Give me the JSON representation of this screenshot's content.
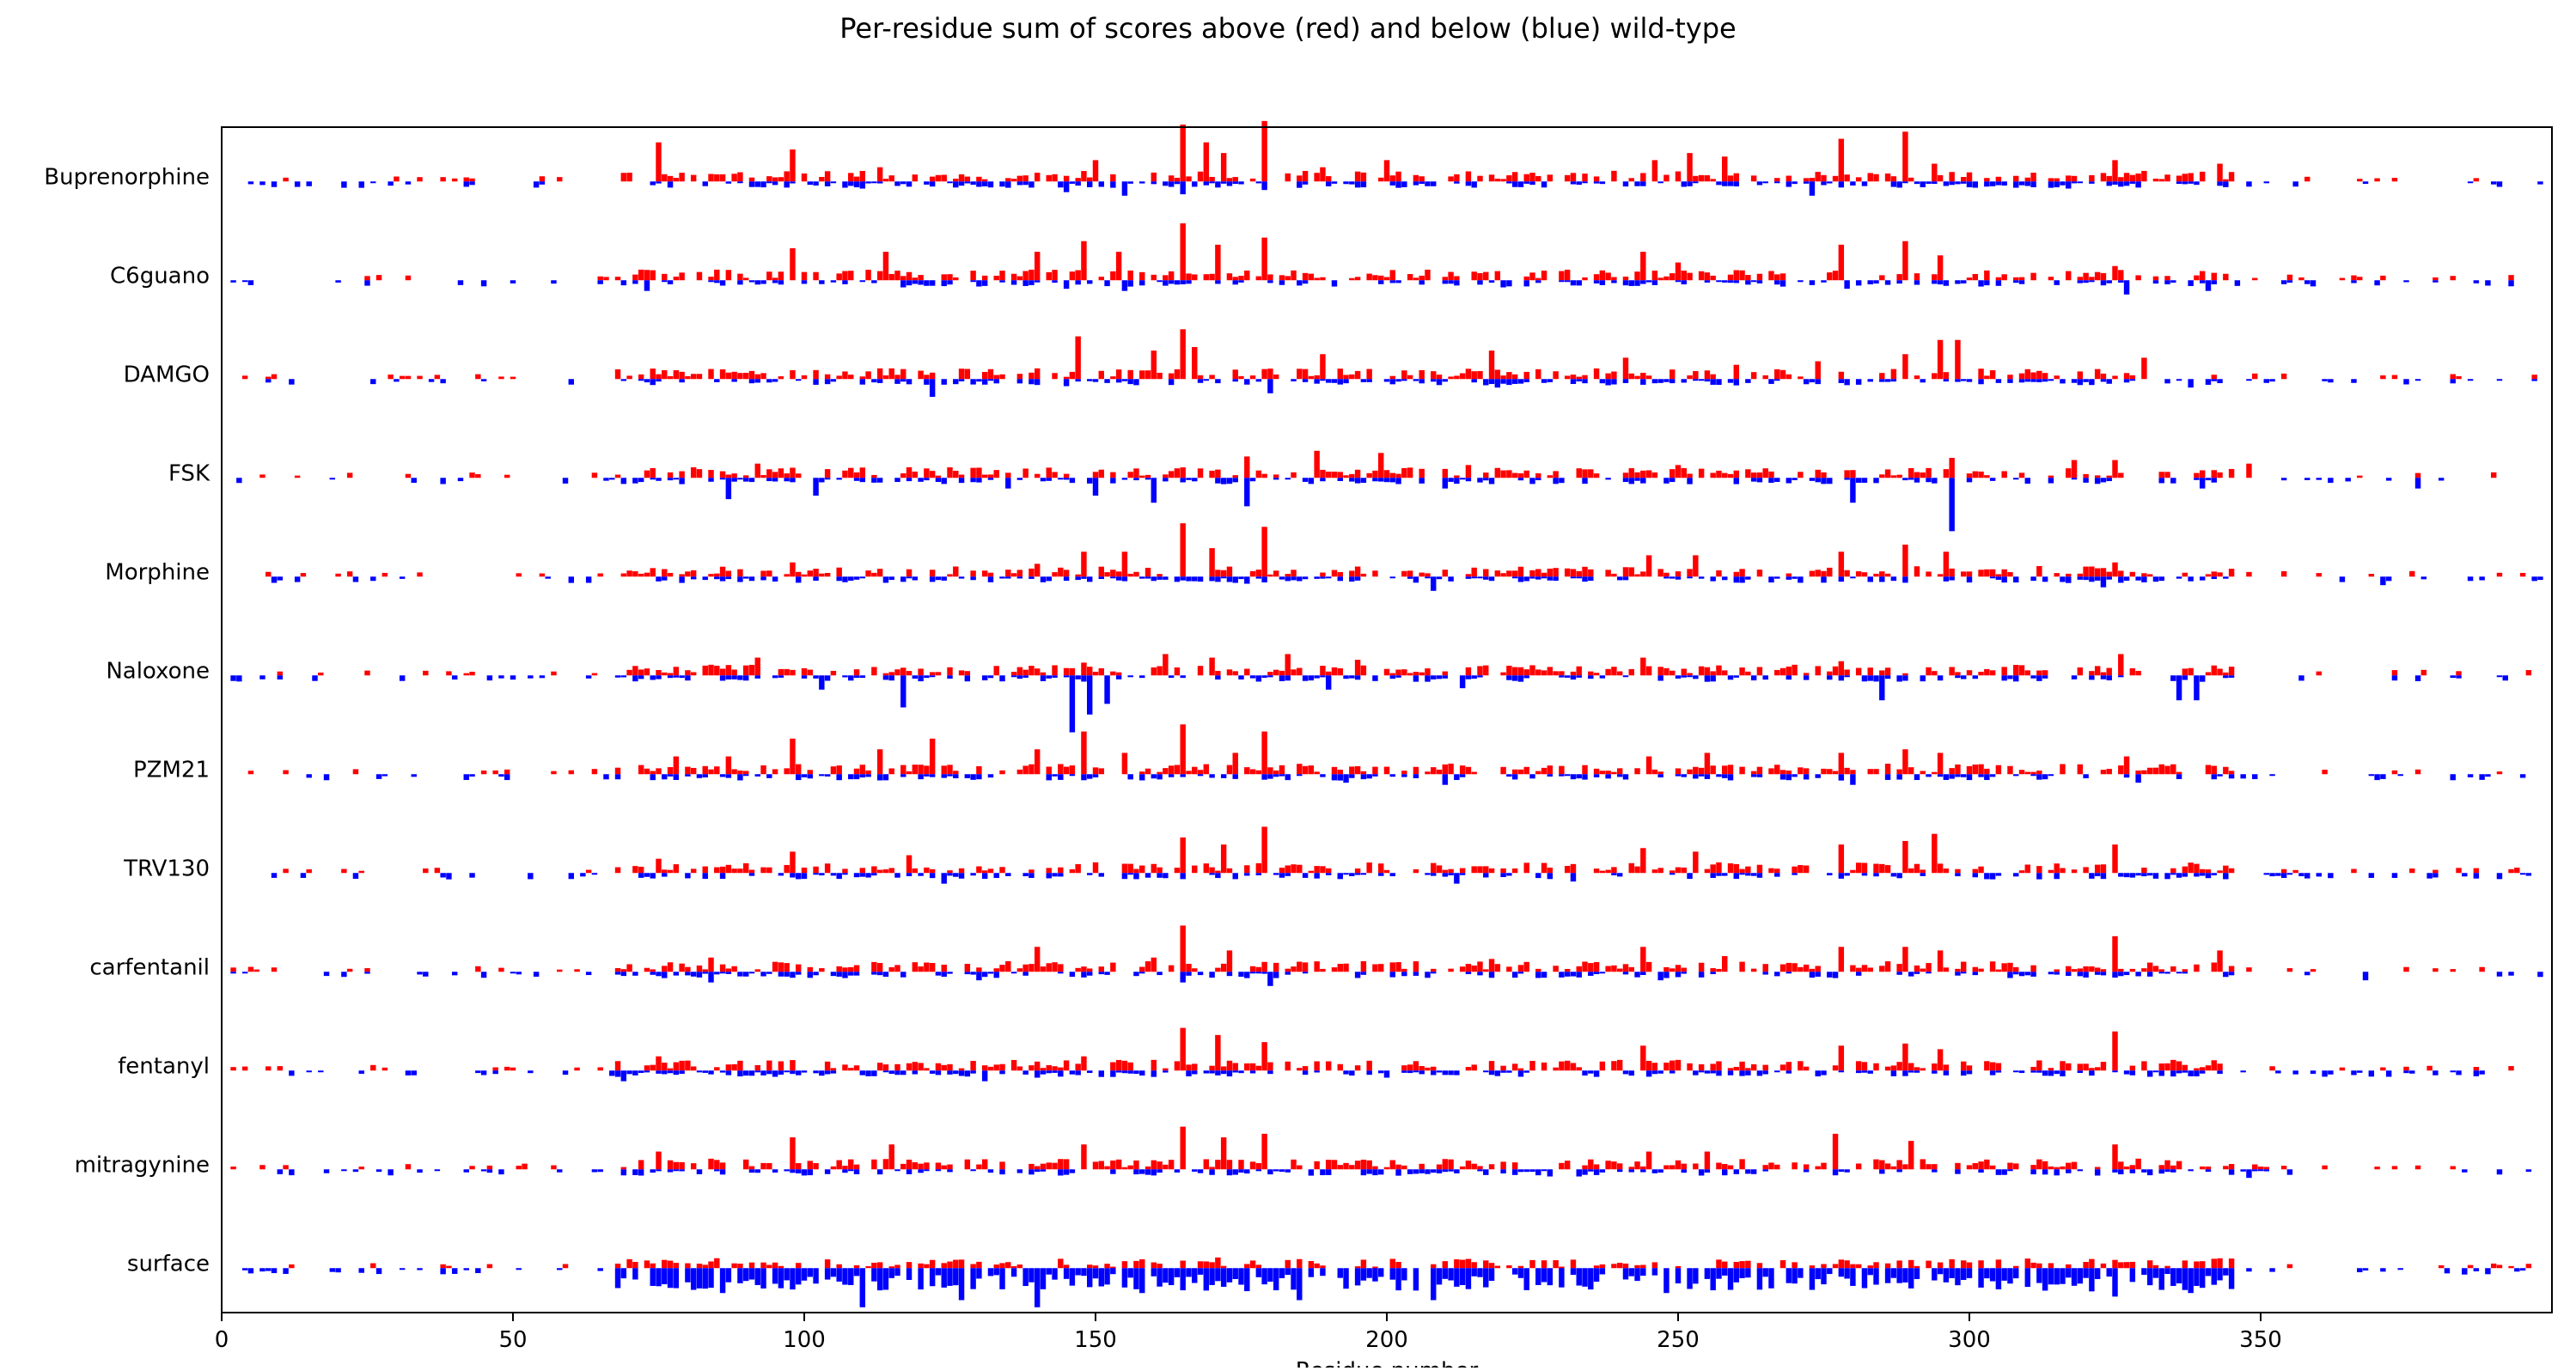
{
  "chart_data": {
    "type": "bar",
    "title": "Per-residue sum of scores above (red) and below (blue) wild-type",
    "xlabel": "Residue number",
    "ylabel": "",
    "xlim": [
      0,
      400
    ],
    "xticks": [
      0,
      50,
      100,
      150,
      200,
      250,
      300,
      350
    ],
    "grid": false,
    "legend": "none",
    "colors": {
      "above": "#ff0000",
      "below": "#0000ff"
    },
    "tracks": [
      "Buprenorphine",
      "C6guano",
      "DAMGO",
      "FSK",
      "Morphine",
      "Naloxone",
      "PZM21",
      "TRV130",
      "carfentanil",
      "fentanyl",
      "mitragynine",
      "surface"
    ],
    "series": [
      {
        "name": "Buprenorphine",
        "peaks": [
          [
            75,
            0.55
          ],
          [
            98,
            0.45
          ],
          [
            113,
            0.2
          ],
          [
            150,
            0.3
          ],
          [
            165,
            0.8
          ],
          [
            169,
            0.55
          ],
          [
            172,
            0.4
          ],
          [
            179,
            0.85
          ],
          [
            189,
            0.2
          ],
          [
            200,
            0.3
          ],
          [
            232,
            0.12
          ],
          [
            246,
            0.3
          ],
          [
            252,
            0.4
          ],
          [
            258,
            0.35
          ],
          [
            278,
            0.6
          ],
          [
            289,
            0.7
          ],
          [
            294,
            0.25
          ],
          [
            325,
            0.3
          ],
          [
            343,
            0.25
          ]
        ],
        "dips": [
          [
            110,
            -0.1
          ],
          [
            145,
            -0.15
          ],
          [
            155,
            -0.2
          ],
          [
            165,
            -0.18
          ],
          [
            179,
            -0.12
          ],
          [
            273,
            -0.2
          ],
          [
            317,
            -0.1
          ]
        ]
      },
      {
        "name": "C6guano",
        "peaks": [
          [
            98,
            0.45
          ],
          [
            114,
            0.4
          ],
          [
            140,
            0.4
          ],
          [
            148,
            0.55
          ],
          [
            154,
            0.4
          ],
          [
            165,
            0.8
          ],
          [
            171,
            0.5
          ],
          [
            179,
            0.6
          ],
          [
            244,
            0.4
          ],
          [
            250,
            0.25
          ],
          [
            278,
            0.5
          ],
          [
            289,
            0.55
          ],
          [
            295,
            0.35
          ],
          [
            325,
            0.2
          ]
        ],
        "dips": [
          [
            73,
            -0.15
          ],
          [
            117,
            -0.1
          ],
          [
            145,
            -0.12
          ],
          [
            155,
            -0.15
          ],
          [
            220,
            -0.1
          ],
          [
            279,
            -0.12
          ],
          [
            327,
            -0.2
          ],
          [
            341,
            -0.15
          ]
        ]
      },
      {
        "name": "DAMGO",
        "peaks": [
          [
            115,
            0.15
          ],
          [
            147,
            0.6
          ],
          [
            160,
            0.4
          ],
          [
            165,
            0.7
          ],
          [
            167,
            0.45
          ],
          [
            189,
            0.35
          ],
          [
            218,
            0.4
          ],
          [
            241,
            0.3
          ],
          [
            260,
            0.2
          ],
          [
            274,
            0.25
          ],
          [
            289,
            0.35
          ],
          [
            295,
            0.55
          ],
          [
            298,
            0.55
          ],
          [
            330,
            0.3
          ]
        ],
        "dips": [
          [
            122,
            -0.25
          ],
          [
            145,
            -0.1
          ],
          [
            180,
            -0.2
          ],
          [
            219,
            -0.12
          ],
          [
            281,
            -0.08
          ],
          [
            338,
            -0.12
          ]
        ]
      },
      {
        "name": "FSK",
        "peaks": [
          [
            92,
            0.2
          ],
          [
            170,
            0.1
          ],
          [
            176,
            0.3
          ],
          [
            188,
            0.38
          ],
          [
            199,
            0.35
          ],
          [
            214,
            0.18
          ],
          [
            235,
            0.12
          ],
          [
            250,
            0.18
          ],
          [
            297,
            0.28
          ],
          [
            318,
            0.25
          ],
          [
            325,
            0.25
          ],
          [
            348,
            0.2
          ]
        ],
        "dips": [
          [
            87,
            -0.3
          ],
          [
            102,
            -0.25
          ],
          [
            135,
            -0.15
          ],
          [
            150,
            -0.25
          ],
          [
            160,
            -0.35
          ],
          [
            176,
            -0.4
          ],
          [
            210,
            -0.15
          ],
          [
            280,
            -0.35
          ],
          [
            297,
            -0.75
          ],
          [
            340,
            -0.15
          ],
          [
            377,
            -0.15
          ]
        ]
      },
      {
        "name": "Morphine",
        "peaks": [
          [
            98,
            0.2
          ],
          [
            140,
            0.18
          ],
          [
            148,
            0.35
          ],
          [
            155,
            0.35
          ],
          [
            165,
            0.75
          ],
          [
            170,
            0.4
          ],
          [
            179,
            0.7
          ],
          [
            245,
            0.3
          ],
          [
            253,
            0.3
          ],
          [
            278,
            0.35
          ],
          [
            289,
            0.45
          ],
          [
            296,
            0.35
          ],
          [
            325,
            0.2
          ]
        ],
        "dips": [
          [
            176,
            -0.1
          ],
          [
            208,
            -0.2
          ],
          [
            323,
            -0.15
          ],
          [
            371,
            -0.12
          ]
        ]
      },
      {
        "name": "Naloxone",
        "peaks": [
          [
            92,
            0.25
          ],
          [
            148,
            0.18
          ],
          [
            162,
            0.3
          ],
          [
            170,
            0.25
          ],
          [
            183,
            0.3
          ],
          [
            195,
            0.22
          ],
          [
            244,
            0.25
          ],
          [
            278,
            0.2
          ],
          [
            326,
            0.3
          ]
        ],
        "dips": [
          [
            103,
            -0.2
          ],
          [
            117,
            -0.45
          ],
          [
            146,
            -0.8
          ],
          [
            149,
            -0.55
          ],
          [
            152,
            -0.4
          ],
          [
            190,
            -0.2
          ],
          [
            213,
            -0.18
          ],
          [
            285,
            -0.35
          ],
          [
            336,
            -0.35
          ],
          [
            339,
            -0.35
          ]
        ]
      },
      {
        "name": "PZM21",
        "peaks": [
          [
            78,
            0.25
          ],
          [
            87,
            0.25
          ],
          [
            98,
            0.5
          ],
          [
            113,
            0.35
          ],
          [
            122,
            0.5
          ],
          [
            140,
            0.35
          ],
          [
            148,
            0.6
          ],
          [
            155,
            0.3
          ],
          [
            165,
            0.7
          ],
          [
            174,
            0.3
          ],
          [
            179,
            0.6
          ],
          [
            245,
            0.25
          ],
          [
            255,
            0.3
          ],
          [
            278,
            0.3
          ],
          [
            289,
            0.35
          ],
          [
            295,
            0.3
          ],
          [
            327,
            0.25
          ]
        ],
        "dips": [
          [
            193,
            -0.12
          ],
          [
            210,
            -0.15
          ],
          [
            280,
            -0.15
          ],
          [
            329,
            -0.12
          ]
        ]
      },
      {
        "name": "TRV130",
        "peaks": [
          [
            75,
            0.2
          ],
          [
            98,
            0.3
          ],
          [
            118,
            0.25
          ],
          [
            150,
            0.15
          ],
          [
            165,
            0.5
          ],
          [
            172,
            0.4
          ],
          [
            179,
            0.65
          ],
          [
            244,
            0.35
          ],
          [
            253,
            0.3
          ],
          [
            278,
            0.4
          ],
          [
            289,
            0.45
          ],
          [
            294,
            0.55
          ],
          [
            325,
            0.4
          ]
        ],
        "dips": [
          [
            124,
            -0.15
          ],
          [
            212,
            -0.15
          ],
          [
            232,
            -0.12
          ],
          [
            278,
            -0.08
          ],
          [
            321,
            -0.08
          ]
        ]
      },
      {
        "name": "carfentanil",
        "peaks": [
          [
            84,
            0.2
          ],
          [
            140,
            0.35
          ],
          [
            160,
            0.2
          ],
          [
            165,
            0.65
          ],
          [
            173,
            0.3
          ],
          [
            218,
            0.18
          ],
          [
            244,
            0.35
          ],
          [
            258,
            0.22
          ],
          [
            278,
            0.35
          ],
          [
            289,
            0.35
          ],
          [
            295,
            0.3
          ],
          [
            325,
            0.5
          ],
          [
            343,
            0.3
          ]
        ],
        "dips": [
          [
            84,
            -0.15
          ],
          [
            130,
            -0.12
          ],
          [
            165,
            -0.15
          ],
          [
            180,
            -0.2
          ],
          [
            247,
            -0.12
          ],
          [
            276,
            -0.08
          ],
          [
            368,
            -0.12
          ]
        ]
      },
      {
        "name": "fentanyl",
        "peaks": [
          [
            75,
            0.2
          ],
          [
            148,
            0.2
          ],
          [
            160,
            0.15
          ],
          [
            165,
            0.6
          ],
          [
            171,
            0.5
          ],
          [
            179,
            0.4
          ],
          [
            240,
            0.15
          ],
          [
            244,
            0.35
          ],
          [
            250,
            0.15
          ],
          [
            278,
            0.35
          ],
          [
            289,
            0.38
          ],
          [
            295,
            0.3
          ],
          [
            325,
            0.55
          ],
          [
            335,
            0.15
          ]
        ],
        "dips": [
          [
            69,
            -0.15
          ],
          [
            131,
            -0.15
          ],
          [
            140,
            -0.1
          ],
          [
            200,
            -0.1
          ],
          [
            287,
            -0.08
          ]
        ]
      },
      {
        "name": "mitragynine",
        "peaks": [
          [
            75,
            0.25
          ],
          [
            98,
            0.45
          ],
          [
            115,
            0.35
          ],
          [
            148,
            0.35
          ],
          [
            165,
            0.6
          ],
          [
            172,
            0.45
          ],
          [
            179,
            0.5
          ],
          [
            245,
            0.25
          ],
          [
            255,
            0.25
          ],
          [
            277,
            0.5
          ],
          [
            290,
            0.4
          ],
          [
            325,
            0.35
          ]
        ],
        "dips": [
          [
            228,
            -0.1
          ],
          [
            233,
            -0.1
          ],
          [
            348,
            -0.12
          ]
        ]
      },
      {
        "name": "surface",
        "peaks": [
          [
            171,
            0.15
          ],
          [
            278,
            0.12
          ]
        ],
        "dips": [
          [
            74,
            -0.25
          ],
          [
            86,
            -0.35
          ],
          [
            98,
            -0.3
          ],
          [
            110,
            -0.55
          ],
          [
            120,
            -0.3
          ],
          [
            127,
            -0.45
          ],
          [
            140,
            -0.55
          ],
          [
            158,
            -0.35
          ],
          [
            173,
            -0.2
          ],
          [
            185,
            -0.45
          ],
          [
            208,
            -0.45
          ],
          [
            235,
            -0.3
          ],
          [
            248,
            -0.35
          ],
          [
            260,
            -0.2
          ],
          [
            280,
            -0.25
          ],
          [
            296,
            -0.2
          ],
          [
            325,
            -0.4
          ],
          [
            338,
            -0.35
          ]
        ]
      }
    ]
  }
}
